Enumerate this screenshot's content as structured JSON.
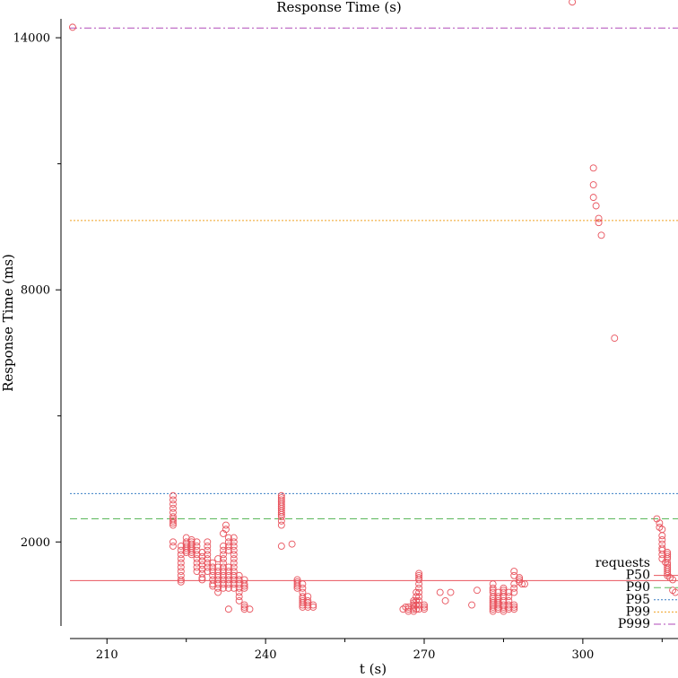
{
  "chart_data": {
    "type": "scatter",
    "title": "Response Time (s)",
    "xlabel": "t (s)",
    "ylabel": "Response Time (ms)",
    "xlim": [
      203,
      318
    ],
    "ylim": [
      0,
      14450
    ],
    "x_ticks": [
      {
        "value": 210,
        "label": "210"
      },
      {
        "value": 240,
        "label": "240"
      },
      {
        "value": 270,
        "label": "270"
      },
      {
        "value": 300,
        "label": "300"
      }
    ],
    "x_minor_ticks": [
      225,
      255,
      285,
      315
    ],
    "y_ticks": [
      {
        "value": 2000,
        "label": "2000"
      },
      {
        "value": 8000,
        "label": "8000"
      },
      {
        "value": 14000,
        "label": "14000"
      }
    ],
    "y_minor_ticks": [
      5000,
      11000
    ],
    "grid": false,
    "legend_position": "bottom-right",
    "colors": {
      "requests": "#e8545e",
      "p50": "#e8545e",
      "p90": "#5cb85c",
      "p95": "#3a7fc4",
      "p99": "#f0a020",
      "p999": "#b04ab8"
    },
    "legend": [
      {
        "label": "requests",
        "key": "requests",
        "style": "circle"
      },
      {
        "label": "P50",
        "key": "p50",
        "style": "solid"
      },
      {
        "label": "P90",
        "key": "p90",
        "style": "dashed"
      },
      {
        "label": "P95",
        "key": "p95",
        "style": "dotted"
      },
      {
        "label": "P99",
        "key": "p99",
        "style": "dotted"
      },
      {
        "label": "P999",
        "key": "p999",
        "style": "dashdot"
      }
    ],
    "percentiles": [
      {
        "name": "P50",
        "key": "p50",
        "value": 1080
      },
      {
        "name": "P90",
        "key": "p90",
        "value": 2550
      },
      {
        "name": "P95",
        "key": "p95",
        "value": 3150
      },
      {
        "name": "P99",
        "key": "p99",
        "value": 9650
      },
      {
        "name": "P999",
        "key": "p999",
        "value": 14230
      }
    ],
    "series": [
      {
        "key": "requests",
        "points": [
          [
            203.5,
            14250
          ],
          [
            222.5,
            3100
          ],
          [
            222.5,
            3000
          ],
          [
            222.5,
            2900
          ],
          [
            222.5,
            2800
          ],
          [
            222.5,
            2700
          ],
          [
            222.5,
            2600
          ],
          [
            222.5,
            2550
          ],
          [
            222.5,
            2500
          ],
          [
            222.5,
            2450
          ],
          [
            222.5,
            2400
          ],
          [
            222.5,
            2000
          ],
          [
            222.5,
            1900
          ],
          [
            224,
            1900
          ],
          [
            224,
            1800
          ],
          [
            224,
            1700
          ],
          [
            224,
            1600
          ],
          [
            224,
            1500
          ],
          [
            224,
            1400
          ],
          [
            224,
            1300
          ],
          [
            224,
            1200
          ],
          [
            224,
            1100
          ],
          [
            224,
            1050
          ],
          [
            225,
            2100
          ],
          [
            225,
            2000
          ],
          [
            225,
            1950
          ],
          [
            225,
            1900
          ],
          [
            225,
            1850
          ],
          [
            225,
            1800
          ],
          [
            225,
            1750
          ],
          [
            226,
            2050
          ],
          [
            226,
            2000
          ],
          [
            226,
            1950
          ],
          [
            226,
            1900
          ],
          [
            226,
            1850
          ],
          [
            226,
            1800
          ],
          [
            226,
            1750
          ],
          [
            226,
            1700
          ],
          [
            227,
            2000
          ],
          [
            227,
            1900
          ],
          [
            227,
            1800
          ],
          [
            227,
            1700
          ],
          [
            227,
            1600
          ],
          [
            227,
            1500
          ],
          [
            227,
            1400
          ],
          [
            227,
            1300
          ],
          [
            228,
            1750
          ],
          [
            228,
            1650
          ],
          [
            228,
            1550
          ],
          [
            228,
            1450
          ],
          [
            228,
            1350
          ],
          [
            228,
            1250
          ],
          [
            228,
            1150
          ],
          [
            228,
            1100
          ],
          [
            229,
            2000
          ],
          [
            229,
            1900
          ],
          [
            229,
            1800
          ],
          [
            229,
            1700
          ],
          [
            229,
            1600
          ],
          [
            229,
            1500
          ],
          [
            229,
            1400
          ],
          [
            229,
            1300
          ],
          [
            230,
            1500
          ],
          [
            230,
            1400
          ],
          [
            230,
            1300
          ],
          [
            230,
            1200
          ],
          [
            230,
            1100
          ],
          [
            230,
            1000
          ],
          [
            230,
            950
          ],
          [
            231,
            1600
          ],
          [
            231,
            1400
          ],
          [
            231,
            1300
          ],
          [
            231,
            1200
          ],
          [
            231,
            1100
          ],
          [
            231,
            1000
          ],
          [
            231,
            900
          ],
          [
            231,
            800
          ],
          [
            232,
            2200
          ],
          [
            232,
            1900
          ],
          [
            232,
            1800
          ],
          [
            232,
            1700
          ],
          [
            232,
            1600
          ],
          [
            232,
            1500
          ],
          [
            232,
            1400
          ],
          [
            232,
            1300
          ],
          [
            232,
            1200
          ],
          [
            232,
            1100
          ],
          [
            232,
            1000
          ],
          [
            232,
            900
          ],
          [
            232.5,
            2400
          ],
          [
            232.5,
            2300
          ],
          [
            233,
            2100
          ],
          [
            233,
            2000
          ],
          [
            233,
            1900
          ],
          [
            233,
            1800
          ],
          [
            233,
            1400
          ],
          [
            233,
            1300
          ],
          [
            233,
            1200
          ],
          [
            233,
            1100
          ],
          [
            233,
            1000
          ],
          [
            233,
            900
          ],
          [
            233,
            400
          ],
          [
            234,
            2100
          ],
          [
            234,
            2000
          ],
          [
            234,
            1900
          ],
          [
            234,
            1800
          ],
          [
            234,
            1700
          ],
          [
            234,
            1600
          ],
          [
            234,
            1500
          ],
          [
            234,
            1400
          ],
          [
            234,
            1300
          ],
          [
            234,
            1200
          ],
          [
            234,
            1100
          ],
          [
            234,
            1000
          ],
          [
            234,
            900
          ],
          [
            235,
            1200
          ],
          [
            235,
            1100
          ],
          [
            235,
            1000
          ],
          [
            235,
            900
          ],
          [
            235,
            800
          ],
          [
            235,
            700
          ],
          [
            235,
            600
          ],
          [
            236,
            1100
          ],
          [
            236,
            1000
          ],
          [
            236,
            950
          ],
          [
            236,
            900
          ],
          [
            236,
            500
          ],
          [
            236,
            450
          ],
          [
            236,
            400
          ],
          [
            237,
            400
          ],
          [
            243,
            3100
          ],
          [
            243,
            3050
          ],
          [
            243,
            3000
          ],
          [
            243,
            2950
          ],
          [
            243,
            2900
          ],
          [
            243,
            2850
          ],
          [
            243,
            2800
          ],
          [
            243,
            2750
          ],
          [
            243,
            2700
          ],
          [
            243,
            2650
          ],
          [
            243,
            2600
          ],
          [
            243,
            2500
          ],
          [
            243,
            2400
          ],
          [
            243,
            1900
          ],
          [
            245,
            1950
          ],
          [
            246,
            1100
          ],
          [
            246,
            1050
          ],
          [
            246,
            1000
          ],
          [
            246,
            950
          ],
          [
            246,
            900
          ],
          [
            247,
            1000
          ],
          [
            247,
            900
          ],
          [
            247,
            800
          ],
          [
            247,
            700
          ],
          [
            247,
            650
          ],
          [
            247,
            600
          ],
          [
            247,
            550
          ],
          [
            247,
            500
          ],
          [
            247,
            450
          ],
          [
            248,
            700
          ],
          [
            248,
            600
          ],
          [
            248,
            550
          ],
          [
            248,
            500
          ],
          [
            248,
            450
          ],
          [
            249,
            500
          ],
          [
            249,
            450
          ],
          [
            266,
            400
          ],
          [
            266.5,
            450
          ],
          [
            267,
            450
          ],
          [
            267,
            400
          ],
          [
            267,
            350
          ],
          [
            268,
            600
          ],
          [
            268,
            550
          ],
          [
            268,
            500
          ],
          [
            268,
            450
          ],
          [
            268,
            400
          ],
          [
            268,
            350
          ],
          [
            268.5,
            800
          ],
          [
            268.5,
            700
          ],
          [
            268.5,
            600
          ],
          [
            268.5,
            500
          ],
          [
            268.5,
            400
          ],
          [
            269,
            1250
          ],
          [
            269,
            1200
          ],
          [
            269,
            1150
          ],
          [
            269,
            1100
          ],
          [
            269,
            1000
          ],
          [
            269,
            900
          ],
          [
            269,
            800
          ],
          [
            269,
            700
          ],
          [
            269,
            600
          ],
          [
            269,
            500
          ],
          [
            269,
            400
          ],
          [
            270,
            500
          ],
          [
            270,
            450
          ],
          [
            270,
            400
          ],
          [
            273,
            800
          ],
          [
            274,
            600
          ],
          [
            275,
            800
          ],
          [
            279,
            500
          ],
          [
            280,
            850
          ],
          [
            283,
            1000
          ],
          [
            283,
            900
          ],
          [
            283,
            850
          ],
          [
            283,
            800
          ],
          [
            283,
            700
          ],
          [
            283,
            650
          ],
          [
            283,
            600
          ],
          [
            283,
            550
          ],
          [
            283,
            500
          ],
          [
            283,
            450
          ],
          [
            283,
            400
          ],
          [
            283,
            350
          ],
          [
            284,
            800
          ],
          [
            284,
            700
          ],
          [
            284,
            650
          ],
          [
            284,
            600
          ],
          [
            284,
            550
          ],
          [
            284,
            500
          ],
          [
            284,
            450
          ],
          [
            284,
            400
          ],
          [
            285,
            900
          ],
          [
            285,
            850
          ],
          [
            285,
            800
          ],
          [
            285,
            700
          ],
          [
            285,
            600
          ],
          [
            285,
            500
          ],
          [
            285,
            450
          ],
          [
            285,
            400
          ],
          [
            285,
            350
          ],
          [
            286,
            800
          ],
          [
            286,
            700
          ],
          [
            286,
            600
          ],
          [
            286,
            500
          ],
          [
            286,
            450
          ],
          [
            286,
            400
          ],
          [
            287,
            1300
          ],
          [
            287,
            1200
          ],
          [
            287,
            1000
          ],
          [
            287,
            900
          ],
          [
            287,
            800
          ],
          [
            287,
            500
          ],
          [
            287,
            450
          ],
          [
            287,
            400
          ],
          [
            288,
            1150
          ],
          [
            288,
            1100
          ],
          [
            288,
            1050
          ],
          [
            288.5,
            1000
          ],
          [
            289,
            1000
          ],
          [
            298,
            14850
          ],
          [
            302,
            10900
          ],
          [
            302,
            10500
          ],
          [
            302,
            10200
          ],
          [
            302.5,
            10000
          ],
          [
            303,
            9700
          ],
          [
            303,
            9600
          ],
          [
            303.5,
            9300
          ],
          [
            306,
            6850
          ],
          [
            314,
            2550
          ],
          [
            314.5,
            2450
          ],
          [
            314.5,
            2350
          ],
          [
            315,
            2300
          ],
          [
            315,
            2150
          ],
          [
            315,
            2050
          ],
          [
            315,
            1950
          ],
          [
            315,
            1850
          ],
          [
            315,
            1800
          ],
          [
            315,
            1700
          ],
          [
            315,
            1600
          ],
          [
            316,
            1750
          ],
          [
            316,
            1700
          ],
          [
            316,
            1650
          ],
          [
            316,
            1600
          ],
          [
            316,
            1500
          ],
          [
            316,
            1450
          ],
          [
            316,
            1400
          ],
          [
            316,
            1350
          ],
          [
            316,
            1300
          ],
          [
            316,
            1250
          ],
          [
            316,
            1200
          ],
          [
            316.5,
            1150
          ],
          [
            317,
            1100
          ],
          [
            317,
            850
          ],
          [
            317.5,
            800
          ]
        ]
      }
    ]
  }
}
